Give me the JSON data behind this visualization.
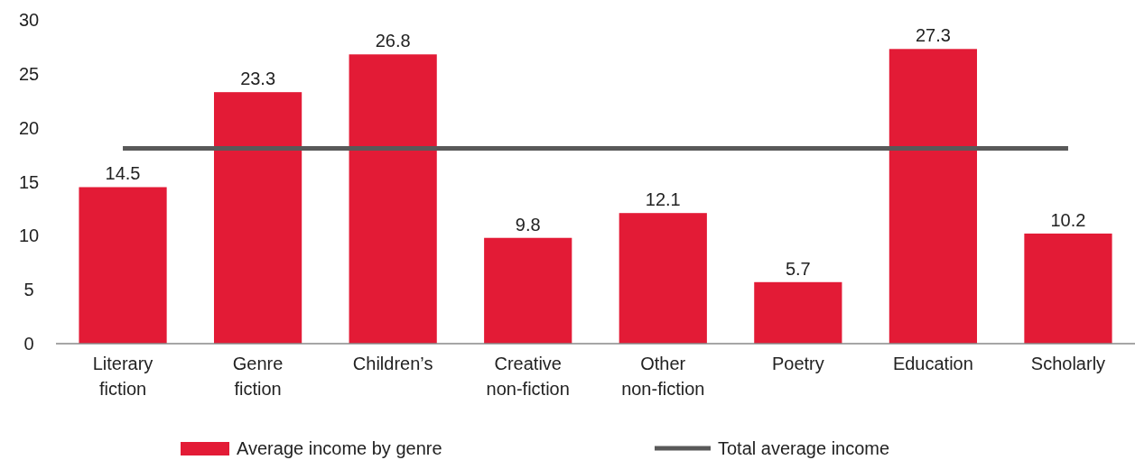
{
  "chart_data": {
    "type": "bar",
    "categories": [
      "Literary fiction",
      "Genre fiction",
      "Children’s",
      "Creative non-fiction",
      "Other non-fiction",
      "Poetry",
      "Education",
      "Scholarly"
    ],
    "series": [
      {
        "name": "Average income by genre",
        "color": "#e31b36",
        "values": [
          14.5,
          23.3,
          26.8,
          9.8,
          12.1,
          5.7,
          27.3,
          10.2
        ],
        "value_labels": [
          "14.5",
          "23.3",
          "26.8",
          "9.8",
          "12.1",
          "5.7",
          "27.3",
          "10.2"
        ]
      },
      {
        "name": "Total average income",
        "type": "line",
        "color": "#595959",
        "values": [
          18.1,
          18.1,
          18.1,
          18.1,
          18.1,
          18.1,
          18.1,
          18.1
        ]
      }
    ],
    "ylim": [
      0,
      30
    ],
    "yticks": [
      0,
      5,
      10,
      15,
      20,
      25,
      30
    ],
    "legend": "bottom",
    "grid": false
  }
}
